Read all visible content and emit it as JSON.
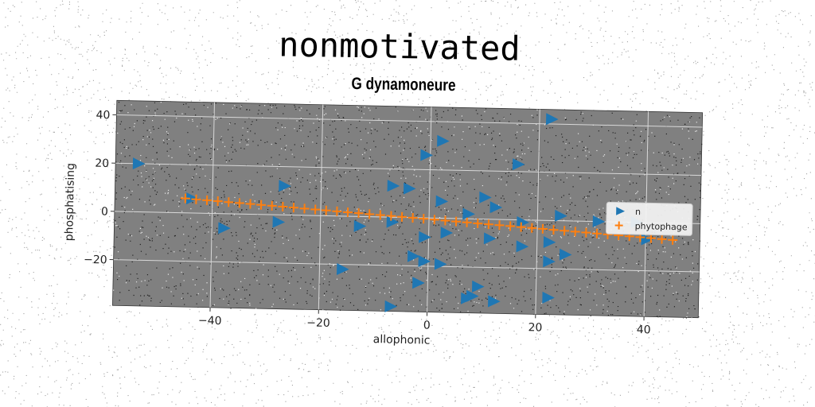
{
  "suptitle": "nonmotivated",
  "chart_data": {
    "type": "scatter",
    "title": "G dynamoneure",
    "xlabel": "allophonic",
    "ylabel": "phosphatising",
    "xlim": [
      -58,
      50
    ],
    "ylim": [
      -39,
      46
    ],
    "xticks": [
      -40,
      -20,
      0,
      20,
      40
    ],
    "yticks": [
      -20,
      0,
      20,
      40
    ],
    "xtick_labels": [
      "−40",
      "−20",
      "0",
      "20",
      "40"
    ],
    "ytick_labels": [
      "−20",
      "0",
      "20",
      "40"
    ],
    "grid": true,
    "legend_position": "right",
    "background": "#808080",
    "series": [
      {
        "name": "n",
        "marker": "triangle-right",
        "color": "#1f77b4",
        "points": [
          [
            -54,
            20
          ],
          [
            -44,
            6
          ],
          [
            -38,
            -6
          ],
          [
            -27,
            12
          ],
          [
            -28,
            -3
          ],
          [
            -16,
            -22
          ],
          [
            -13,
            -4
          ],
          [
            -7,
            13
          ],
          [
            -4,
            12
          ],
          [
            -7,
            -2
          ],
          [
            -7,
            -37
          ],
          [
            -3,
            -16
          ],
          [
            -1,
            -18
          ],
          [
            -2,
            -27
          ],
          [
            -1,
            -8
          ],
          [
            -1,
            26
          ],
          [
            2,
            32
          ],
          [
            2,
            7
          ],
          [
            2,
            -19
          ],
          [
            3,
            -6
          ],
          [
            7,
            2
          ],
          [
            7,
            -33
          ],
          [
            9,
            -28
          ],
          [
            10,
            9
          ],
          [
            12,
            5
          ],
          [
            12,
            -34
          ],
          [
            11,
            -8
          ],
          [
            16,
            23
          ],
          [
            17,
            -1
          ],
          [
            17,
            -11
          ],
          [
            22,
            -17
          ],
          [
            22,
            -32
          ],
          [
            22,
            42
          ],
          [
            22,
            -9
          ],
          [
            24,
            2
          ],
          [
            25,
            -14
          ],
          [
            31,
            0
          ],
          [
            38,
            0
          ],
          [
            40,
            -7
          ],
          [
            8,
            -32
          ]
        ]
      },
      {
        "name": "phytophage",
        "marker": "plus",
        "color": "#ff7f0e",
        "line": {
          "x_start": -45,
          "x_end": 45,
          "y_start": 6,
          "y_end": -7,
          "count": 46
        }
      }
    ]
  }
}
